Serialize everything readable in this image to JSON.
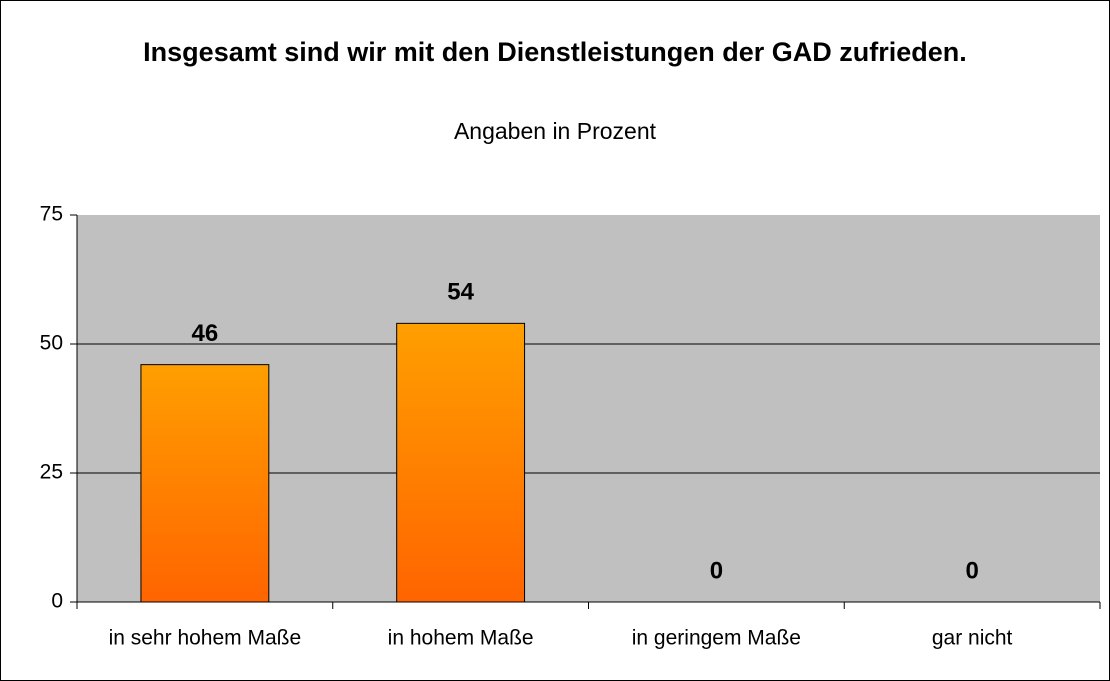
{
  "chart_data": {
    "type": "bar",
    "title": "Insgesamt sind wir mit den Dienstleistungen der GAD zufrieden.",
    "subtitle": "Angaben in Prozent",
    "categories": [
      "in sehr hohem Maße",
      "in hohem Maße",
      "in geringem Maße",
      "gar nicht"
    ],
    "values": [
      46,
      54,
      0,
      0
    ],
    "color": [
      "#ff9f00",
      "#ff6400"
    ],
    "plot_background": "#c0c0c0",
    "ylim": [
      0,
      75
    ],
    "yticks": [
      0,
      25,
      50,
      75
    ],
    "grid": true
  }
}
